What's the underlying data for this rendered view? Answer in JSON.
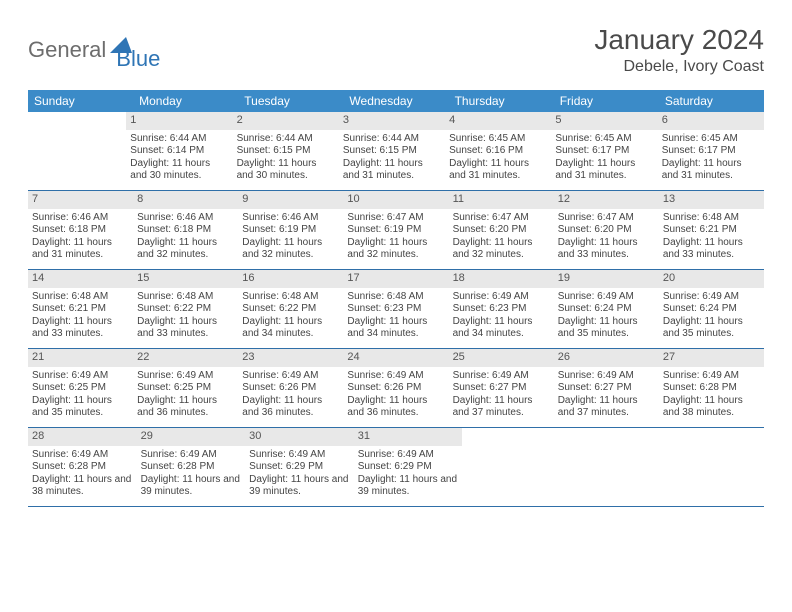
{
  "logo": {
    "text_general": "General",
    "text_blue": "Blue",
    "shape_color": "#2f75b5"
  },
  "title": "January 2024",
  "location": "Debele, Ivory Coast",
  "colors": {
    "header_bg": "#3b8bc8",
    "header_text": "#ffffff",
    "daynum_bg": "#e8e8e8",
    "row_border": "#2f6fa8"
  },
  "day_names": [
    "Sunday",
    "Monday",
    "Tuesday",
    "Wednesday",
    "Thursday",
    "Friday",
    "Saturday"
  ],
  "weeks": [
    [
      null,
      {
        "n": "1",
        "sr": "6:44 AM",
        "ss": "6:14 PM",
        "dl": "11 hours and 30 minutes."
      },
      {
        "n": "2",
        "sr": "6:44 AM",
        "ss": "6:15 PM",
        "dl": "11 hours and 30 minutes."
      },
      {
        "n": "3",
        "sr": "6:44 AM",
        "ss": "6:15 PM",
        "dl": "11 hours and 31 minutes."
      },
      {
        "n": "4",
        "sr": "6:45 AM",
        "ss": "6:16 PM",
        "dl": "11 hours and 31 minutes."
      },
      {
        "n": "5",
        "sr": "6:45 AM",
        "ss": "6:17 PM",
        "dl": "11 hours and 31 minutes."
      },
      {
        "n": "6",
        "sr": "6:45 AM",
        "ss": "6:17 PM",
        "dl": "11 hours and 31 minutes."
      }
    ],
    [
      {
        "n": "7",
        "sr": "6:46 AM",
        "ss": "6:18 PM",
        "dl": "11 hours and 31 minutes."
      },
      {
        "n": "8",
        "sr": "6:46 AM",
        "ss": "6:18 PM",
        "dl": "11 hours and 32 minutes."
      },
      {
        "n": "9",
        "sr": "6:46 AM",
        "ss": "6:19 PM",
        "dl": "11 hours and 32 minutes."
      },
      {
        "n": "10",
        "sr": "6:47 AM",
        "ss": "6:19 PM",
        "dl": "11 hours and 32 minutes."
      },
      {
        "n": "11",
        "sr": "6:47 AM",
        "ss": "6:20 PM",
        "dl": "11 hours and 32 minutes."
      },
      {
        "n": "12",
        "sr": "6:47 AM",
        "ss": "6:20 PM",
        "dl": "11 hours and 33 minutes."
      },
      {
        "n": "13",
        "sr": "6:48 AM",
        "ss": "6:21 PM",
        "dl": "11 hours and 33 minutes."
      }
    ],
    [
      {
        "n": "14",
        "sr": "6:48 AM",
        "ss": "6:21 PM",
        "dl": "11 hours and 33 minutes."
      },
      {
        "n": "15",
        "sr": "6:48 AM",
        "ss": "6:22 PM",
        "dl": "11 hours and 33 minutes."
      },
      {
        "n": "16",
        "sr": "6:48 AM",
        "ss": "6:22 PM",
        "dl": "11 hours and 34 minutes."
      },
      {
        "n": "17",
        "sr": "6:48 AM",
        "ss": "6:23 PM",
        "dl": "11 hours and 34 minutes."
      },
      {
        "n": "18",
        "sr": "6:49 AM",
        "ss": "6:23 PM",
        "dl": "11 hours and 34 minutes."
      },
      {
        "n": "19",
        "sr": "6:49 AM",
        "ss": "6:24 PM",
        "dl": "11 hours and 35 minutes."
      },
      {
        "n": "20",
        "sr": "6:49 AM",
        "ss": "6:24 PM",
        "dl": "11 hours and 35 minutes."
      }
    ],
    [
      {
        "n": "21",
        "sr": "6:49 AM",
        "ss": "6:25 PM",
        "dl": "11 hours and 35 minutes."
      },
      {
        "n": "22",
        "sr": "6:49 AM",
        "ss": "6:25 PM",
        "dl": "11 hours and 36 minutes."
      },
      {
        "n": "23",
        "sr": "6:49 AM",
        "ss": "6:26 PM",
        "dl": "11 hours and 36 minutes."
      },
      {
        "n": "24",
        "sr": "6:49 AM",
        "ss": "6:26 PM",
        "dl": "11 hours and 36 minutes."
      },
      {
        "n": "25",
        "sr": "6:49 AM",
        "ss": "6:27 PM",
        "dl": "11 hours and 37 minutes."
      },
      {
        "n": "26",
        "sr": "6:49 AM",
        "ss": "6:27 PM",
        "dl": "11 hours and 37 minutes."
      },
      {
        "n": "27",
        "sr": "6:49 AM",
        "ss": "6:28 PM",
        "dl": "11 hours and 38 minutes."
      }
    ],
    [
      {
        "n": "28",
        "sr": "6:49 AM",
        "ss": "6:28 PM",
        "dl": "11 hours and 38 minutes."
      },
      {
        "n": "29",
        "sr": "6:49 AM",
        "ss": "6:28 PM",
        "dl": "11 hours and 39 minutes."
      },
      {
        "n": "30",
        "sr": "6:49 AM",
        "ss": "6:29 PM",
        "dl": "11 hours and 39 minutes."
      },
      {
        "n": "31",
        "sr": "6:49 AM",
        "ss": "6:29 PM",
        "dl": "11 hours and 39 minutes."
      },
      null,
      null,
      null
    ]
  ],
  "labels": {
    "sunrise": "Sunrise:",
    "sunset": "Sunset:",
    "daylight": "Daylight:"
  }
}
